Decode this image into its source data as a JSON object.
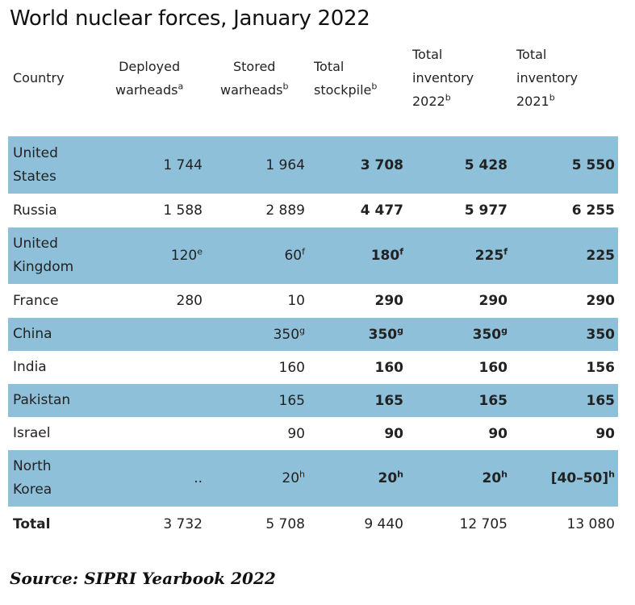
{
  "title": "World nuclear forces, January 2022",
  "headers": {
    "country": "Country",
    "deployed_l1": "Deployed",
    "deployed_l2": "warheads",
    "deployed_sup": "a",
    "stored_l1": "Stored",
    "stored_l2": "warheads",
    "stored_sup": "b",
    "stockpile_l1": "Total",
    "stockpile_l2": "stockpile",
    "stockpile_sup": "b",
    "inv2022_l1": "Total",
    "inv2022_l2": "inventory",
    "inv2022_l3": "2022",
    "inv2022_sup": "b",
    "inv2021_l1": "Total",
    "inv2021_l2": "inventory",
    "inv2021_l3": "2021",
    "inv2021_sup": "b"
  },
  "rows": [
    {
      "country_l1": "United",
      "country_l2": "States",
      "deployed": "1 744",
      "deployed_sup": "",
      "stored": "1 964",
      "stored_sup": "",
      "stockpile": "3 708",
      "stockpile_sup": "",
      "inv2022": "5 428",
      "inv2022_sup": "",
      "inv2021": "5 550",
      "inv2021_sup": ""
    },
    {
      "country_l1": "Russia",
      "country_l2": "",
      "deployed": "1 588",
      "deployed_sup": "",
      "stored": "2 889",
      "stored_sup": "",
      "stockpile": "4 477",
      "stockpile_sup": "",
      "inv2022": "5 977",
      "inv2022_sup": "",
      "inv2021": "6 255",
      "inv2021_sup": ""
    },
    {
      "country_l1": "United",
      "country_l2": "Kingdom",
      "deployed": "120",
      "deployed_sup": "e",
      "stored": "60",
      "stored_sup": "f",
      "stockpile": "180",
      "stockpile_sup": "f",
      "inv2022": "225",
      "inv2022_sup": "f",
      "inv2021": "225",
      "inv2021_sup": ""
    },
    {
      "country_l1": "France",
      "country_l2": "",
      "deployed": "280",
      "deployed_sup": "",
      "stored": "10",
      "stored_sup": "",
      "stockpile": "290",
      "stockpile_sup": "",
      "inv2022": "290",
      "inv2022_sup": "",
      "inv2021": "290",
      "inv2021_sup": ""
    },
    {
      "country_l1": "China",
      "country_l2": "",
      "deployed": "",
      "deployed_sup": "",
      "stored": "350",
      "stored_sup": "g",
      "stockpile": "350",
      "stockpile_sup": "g",
      "inv2022": "350",
      "inv2022_sup": "g",
      "inv2021": "350",
      "inv2021_sup": ""
    },
    {
      "country_l1": "India",
      "country_l2": "",
      "deployed": "",
      "deployed_sup": "",
      "stored": "160",
      "stored_sup": "",
      "stockpile": "160",
      "stockpile_sup": "",
      "inv2022": "160",
      "inv2022_sup": "",
      "inv2021": "156",
      "inv2021_sup": ""
    },
    {
      "country_l1": "Pakistan",
      "country_l2": "",
      "deployed": "",
      "deployed_sup": "",
      "stored": "165",
      "stored_sup": "",
      "stockpile": "165",
      "stockpile_sup": "",
      "inv2022": "165",
      "inv2022_sup": "",
      "inv2021": "165",
      "inv2021_sup": ""
    },
    {
      "country_l1": "Israel",
      "country_l2": "",
      "deployed": "",
      "deployed_sup": "",
      "stored": "90",
      "stored_sup": "",
      "stockpile": "90",
      "stockpile_sup": "",
      "inv2022": "90",
      "inv2022_sup": "",
      "inv2021": "90",
      "inv2021_sup": ""
    },
    {
      "country_l1": "North",
      "country_l2": "Korea",
      "deployed": "..",
      "deployed_sup": "",
      "stored": "20",
      "stored_sup": "h",
      "stockpile": "20",
      "stockpile_sup": "h",
      "inv2022": "20",
      "inv2022_sup": "h",
      "inv2021": "[40–50]",
      "inv2021_sup": "h"
    }
  ],
  "total": {
    "label": "Total",
    "deployed": "3 732",
    "stored": "5 708",
    "stockpile": "9 440",
    "inv2022": "12 705",
    "inv2021": "13 080"
  },
  "source": "Source: SIPRI Yearbook 2022",
  "colors": {
    "row_shade": "#8ec0d9"
  }
}
